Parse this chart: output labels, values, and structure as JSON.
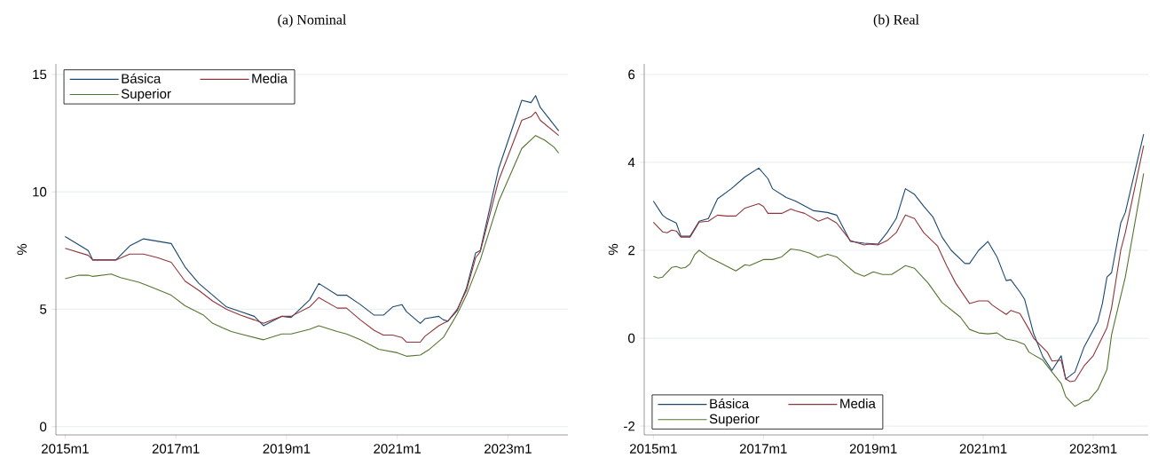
{
  "chart_data": [
    {
      "type": "line",
      "title": "(a) Nominal",
      "ylabel": "%",
      "grid": "y",
      "legend": "top left",
      "xlim": [
        "2014-11",
        "2024-02"
      ],
      "ylim": [
        -0.35,
        15.45
      ],
      "xticks": [
        {
          "value": "2015-01",
          "label": "2015m1"
        },
        {
          "value": "2017-01",
          "label": "2017m1"
        },
        {
          "value": "2019-01",
          "label": "2019m1"
        },
        {
          "value": "2021-01",
          "label": "2021m1"
        },
        {
          "value": "2023-01",
          "label": "2023m1"
        }
      ],
      "yticks": [
        0,
        5,
        10,
        15
      ],
      "series": [
        {
          "name": "Básica",
          "color": "#1a476f",
          "x": [
            "2015-01",
            "2015-06",
            "2015-07",
            "2015-12",
            "2016-03",
            "2016-06",
            "2016-12",
            "2017-03",
            "2017-06",
            "2017-09",
            "2017-12",
            "2018-03",
            "2018-06",
            "2018-08",
            "2018-12",
            "2019-02",
            "2019-06",
            "2019-08",
            "2019-12",
            "2020-02",
            "2020-05",
            "2020-08",
            "2020-10",
            "2020-12",
            "2021-02",
            "2021-03",
            "2021-06",
            "2021-07",
            "2021-10",
            "2021-11",
            "2021-12",
            "2022-02",
            "2022-04",
            "2022-06",
            "2022-07",
            "2022-11",
            "2023-04",
            "2023-06",
            "2023-07",
            "2023-08",
            "2023-12"
          ],
          "values": [
            8.1,
            7.5,
            7.1,
            7.1,
            7.7,
            8.0,
            7.8,
            6.8,
            6.1,
            5.6,
            5.1,
            4.9,
            4.7,
            4.3,
            4.7,
            4.65,
            5.4,
            6.1,
            5.6,
            5.6,
            5.2,
            4.75,
            4.75,
            5.1,
            5.2,
            4.9,
            4.4,
            4.6,
            4.7,
            4.55,
            4.5,
            4.95,
            5.9,
            7.4,
            7.5,
            11.0,
            13.9,
            13.8,
            14.1,
            13.6,
            12.6
          ]
        },
        {
          "name": "Media",
          "color": "#90353b",
          "x": [
            "2015-01",
            "2015-06",
            "2015-07",
            "2015-12",
            "2016-03",
            "2016-06",
            "2016-09",
            "2016-12",
            "2017-03",
            "2017-06",
            "2017-09",
            "2017-12",
            "2018-03",
            "2018-06",
            "2018-08",
            "2018-12",
            "2019-02",
            "2019-06",
            "2019-08",
            "2019-12",
            "2020-02",
            "2020-05",
            "2020-08",
            "2020-10",
            "2020-12",
            "2021-02",
            "2021-03",
            "2021-06",
            "2021-07",
            "2021-10",
            "2021-11",
            "2021-12",
            "2022-02",
            "2022-04",
            "2022-06",
            "2022-07",
            "2022-11",
            "2023-04",
            "2023-06",
            "2023-07",
            "2023-08",
            "2023-12"
          ],
          "values": [
            7.6,
            7.3,
            7.1,
            7.1,
            7.35,
            7.35,
            7.2,
            7.0,
            6.2,
            5.8,
            5.35,
            5.0,
            4.75,
            4.55,
            4.4,
            4.7,
            4.7,
            5.1,
            5.5,
            5.05,
            5.05,
            4.55,
            4.1,
            3.9,
            3.9,
            3.8,
            3.6,
            3.6,
            3.85,
            4.3,
            4.4,
            4.5,
            5.0,
            5.8,
            7.2,
            7.45,
            10.5,
            13.05,
            13.2,
            13.4,
            13.05,
            12.4
          ]
        },
        {
          "name": "Superior",
          "color": "#55752f",
          "x": [
            "2015-01",
            "2015-04",
            "2015-06",
            "2015-07",
            "2015-11",
            "2016-01",
            "2016-05",
            "2016-07",
            "2016-12",
            "2017-03",
            "2017-07",
            "2017-09",
            "2018-01",
            "2018-03",
            "2018-08",
            "2018-12",
            "2019-02",
            "2019-06",
            "2019-08",
            "2019-12",
            "2020-02",
            "2020-05",
            "2020-09",
            "2021-01",
            "2021-03",
            "2021-06",
            "2021-08",
            "2021-11",
            "2022-02",
            "2022-04",
            "2022-07",
            "2022-11",
            "2023-04",
            "2023-07",
            "2023-09",
            "2023-11",
            "2023-12"
          ],
          "values": [
            6.3,
            6.45,
            6.45,
            6.4,
            6.5,
            6.35,
            6.15,
            6.0,
            5.6,
            5.15,
            4.75,
            4.4,
            4.05,
            3.95,
            3.7,
            3.95,
            3.95,
            4.15,
            4.3,
            4.05,
            3.95,
            3.7,
            3.3,
            3.15,
            3.0,
            3.05,
            3.3,
            3.8,
            4.8,
            5.6,
            7.1,
            9.6,
            11.85,
            12.4,
            12.2,
            11.9,
            11.65
          ]
        }
      ]
    },
    {
      "type": "line",
      "title": "(b) Real",
      "ylabel": "%",
      "grid": "y",
      "legend": "bottom left",
      "xlim": [
        "2014-11",
        "2024-01"
      ],
      "ylim": [
        -2.2,
        6.24
      ],
      "xticks": [
        {
          "value": "2015-01",
          "label": "2015m1"
        },
        {
          "value": "2017-01",
          "label": "2017m1"
        },
        {
          "value": "2019-01",
          "label": "2019m1"
        },
        {
          "value": "2021-01",
          "label": "2021m1"
        },
        {
          "value": "2023-01",
          "label": "2023m1"
        }
      ],
      "yticks": [
        -2,
        0,
        2,
        4,
        6
      ],
      "series": [
        {
          "name": "Básica",
          "color": "#1a476f",
          "x": [
            "2015-01",
            "2015-03",
            "2015-04",
            "2015-06",
            "2015-07",
            "2015-09",
            "2015-11",
            "2016-01",
            "2016-03",
            "2016-06",
            "2016-09",
            "2016-12",
            "2017-02",
            "2017-03",
            "2017-06",
            "2017-08",
            "2017-12",
            "2018-03",
            "2018-05",
            "2018-08",
            "2018-11",
            "2019-02",
            "2019-04",
            "2019-06",
            "2019-08",
            "2019-10",
            "2019-12",
            "2020-02",
            "2020-04",
            "2020-06",
            "2020-09",
            "2020-10",
            "2020-12",
            "2021-02",
            "2021-04",
            "2021-06",
            "2021-07",
            "2021-09",
            "2021-10",
            "2021-12",
            "2022-02",
            "2022-04",
            "2022-06",
            "2022-07",
            "2022-09",
            "2022-11",
            "2023-02",
            "2023-03",
            "2023-04",
            "2023-05",
            "2023-07",
            "2023-08",
            "2023-12"
          ],
          "values": [
            3.12,
            2.8,
            2.72,
            2.62,
            2.32,
            2.32,
            2.66,
            2.72,
            3.17,
            3.4,
            3.67,
            3.87,
            3.63,
            3.4,
            3.2,
            3.12,
            2.9,
            2.86,
            2.8,
            2.2,
            2.16,
            2.14,
            2.4,
            2.72,
            3.4,
            3.27,
            3.0,
            2.76,
            2.3,
            2.0,
            1.7,
            1.7,
            2.0,
            2.2,
            1.85,
            1.31,
            1.33,
            1.05,
            0.89,
            0.1,
            -0.42,
            -0.73,
            -0.4,
            -0.93,
            -0.77,
            -0.2,
            0.38,
            0.79,
            1.39,
            1.49,
            2.62,
            2.86,
            4.64
          ]
        },
        {
          "name": "Media",
          "color": "#90353b",
          "x": [
            "2015-01",
            "2015-03",
            "2015-04",
            "2015-05",
            "2015-06",
            "2015-07",
            "2015-09",
            "2015-11",
            "2016-01",
            "2016-03",
            "2016-05",
            "2016-07",
            "2016-09",
            "2016-12",
            "2017-01",
            "2017-02",
            "2017-05",
            "2017-07",
            "2017-08",
            "2017-10",
            "2018-01",
            "2018-03",
            "2018-05",
            "2018-08",
            "2018-11",
            "2018-12",
            "2019-02",
            "2019-04",
            "2019-06",
            "2019-08",
            "2019-10",
            "2019-12",
            "2020-03",
            "2020-05",
            "2020-07",
            "2020-10",
            "2020-12",
            "2021-02",
            "2021-03",
            "2021-06",
            "2021-07",
            "2021-09",
            "2021-11",
            "2021-12",
            "2022-03",
            "2022-04",
            "2022-06",
            "2022-07",
            "2022-08",
            "2022-09",
            "2022-11",
            "2023-01",
            "2023-04",
            "2023-05",
            "2023-07",
            "2023-08",
            "2023-12"
          ],
          "values": [
            2.64,
            2.42,
            2.4,
            2.46,
            2.44,
            2.3,
            2.3,
            2.64,
            2.66,
            2.8,
            2.78,
            2.78,
            2.96,
            3.06,
            3.0,
            2.84,
            2.84,
            2.94,
            2.9,
            2.84,
            2.66,
            2.74,
            2.62,
            2.22,
            2.12,
            2.14,
            2.12,
            2.22,
            2.4,
            2.8,
            2.72,
            2.4,
            2.1,
            1.65,
            1.25,
            0.79,
            0.85,
            0.85,
            0.75,
            0.54,
            0.63,
            0.56,
            0.2,
            0.0,
            -0.32,
            -0.52,
            -0.5,
            -0.93,
            -0.99,
            -0.97,
            -0.63,
            -0.4,
            0.24,
            0.69,
            2.0,
            2.4,
            4.38
          ]
        },
        {
          "name": "Superior",
          "color": "#55752f",
          "x": [
            "2015-01",
            "2015-02",
            "2015-03",
            "2015-05",
            "2015-06",
            "2015-07",
            "2015-08",
            "2015-09",
            "2015-10",
            "2015-11",
            "2016-01",
            "2016-04",
            "2016-07",
            "2016-09",
            "2016-10",
            "2017-01",
            "2017-03",
            "2017-05",
            "2017-07",
            "2017-09",
            "2017-11",
            "2018-01",
            "2018-03",
            "2018-05",
            "2018-07",
            "2018-09",
            "2018-11",
            "2019-01",
            "2019-03",
            "2019-05",
            "2019-08",
            "2019-10",
            "2020-01",
            "2020-04",
            "2020-08",
            "2020-10",
            "2020-12",
            "2021-02",
            "2021-04",
            "2021-06",
            "2021-08",
            "2021-10",
            "2021-11",
            "2022-02",
            "2022-04",
            "2022-06",
            "2022-07",
            "2022-09",
            "2022-11",
            "2022-12",
            "2023-02",
            "2023-04",
            "2023-05",
            "2023-08",
            "2023-12"
          ],
          "values": [
            1.41,
            1.37,
            1.39,
            1.61,
            1.63,
            1.59,
            1.61,
            1.69,
            1.9,
            2.0,
            1.85,
            1.69,
            1.53,
            1.67,
            1.65,
            1.79,
            1.79,
            1.85,
            2.03,
            2.0,
            1.94,
            1.84,
            1.91,
            1.85,
            1.67,
            1.49,
            1.41,
            1.51,
            1.45,
            1.45,
            1.65,
            1.59,
            1.25,
            0.81,
            0.48,
            0.2,
            0.12,
            0.1,
            0.12,
            -0.02,
            -0.06,
            -0.14,
            -0.32,
            -0.5,
            -0.77,
            -1.03,
            -1.33,
            -1.55,
            -1.43,
            -1.41,
            -1.17,
            -0.71,
            0.08,
            1.39,
            3.75
          ]
        }
      ]
    }
  ]
}
